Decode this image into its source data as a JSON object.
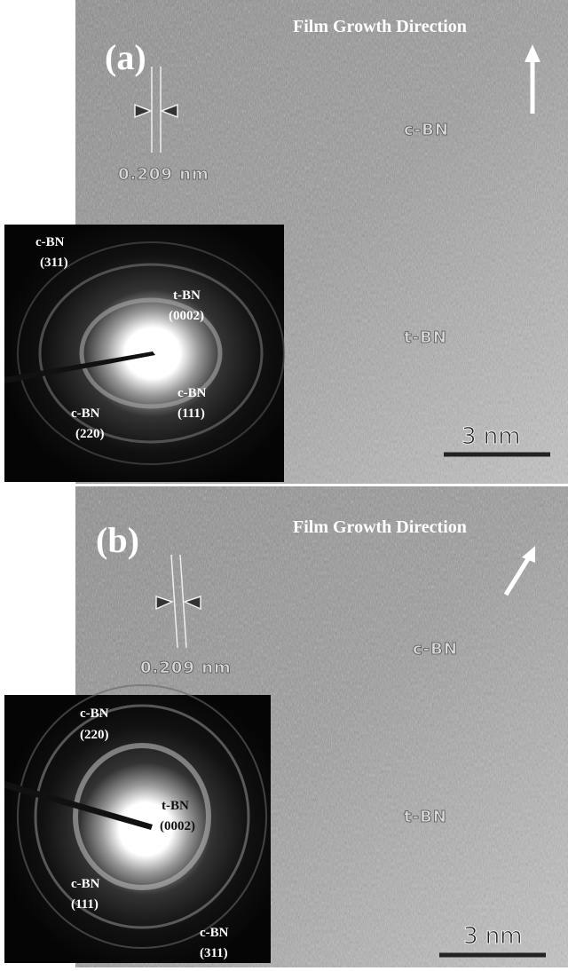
{
  "panels": [
    {
      "label": "(a)",
      "direction": "Film Growth Direction",
      "spacing": "0.209 nm",
      "regions": [
        "c-BN",
        "t-BN"
      ],
      "scale_bar": "3 nm",
      "inset": [
        "c-BN",
        "(311)",
        "t-BN",
        "(0002)",
        "c-BN",
        "(111)",
        "c-BN",
        "(220)"
      ]
    },
    {
      "label": "(b)",
      "direction": "Film Growth Direction",
      "spacing": "0.209 nm",
      "regions": [
        "c-BN",
        "t-BN"
      ],
      "scale_bar": "3 nm",
      "inset": [
        "c-BN",
        "(220)",
        "t-BN",
        "(0002)",
        "c-BN",
        "(111)",
        "c-BN",
        "(311)"
      ]
    }
  ]
}
